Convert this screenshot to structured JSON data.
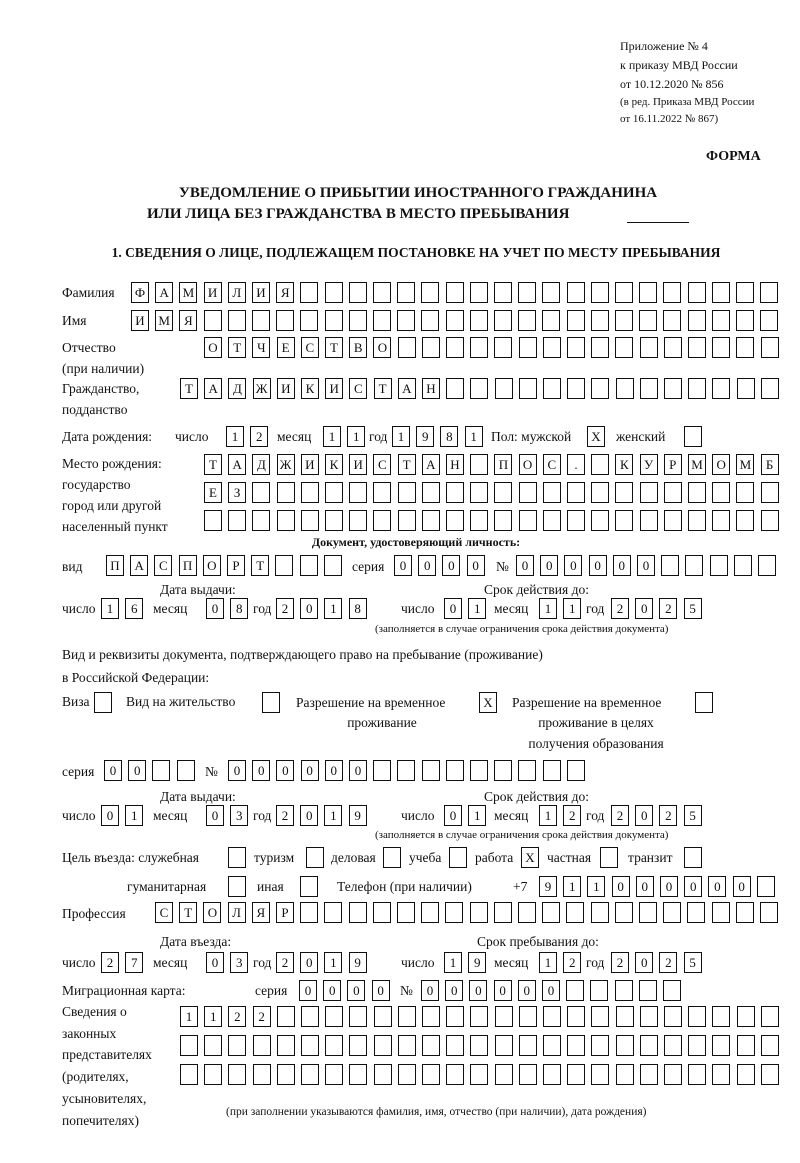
{
  "header": {
    "appendix": "Приложение № 4",
    "order": "к приказу МВД России",
    "order_date": "от 10.12.2020 № 856",
    "revision1": "(в ред. Приказа МВД России",
    "revision2": "от 16.11.2022 № 867)",
    "form": "ФОРМА",
    "title1": "УВЕДОМЛЕНИЕ О ПРИБЫТИИ ИНОСТРАННОГО ГРАЖДАНИНА",
    "title2": "ИЛИ ЛИЦА БЕЗ ГРАЖДАНСТВА В МЕСТО ПРЕБЫВАНИЯ",
    "section1": "1. СВЕДЕНИЯ О ЛИЦЕ, ПОДЛЕЖАЩЕМ ПОСТАНОВКЕ НА УЧЕТ ПО МЕСТУ ПРЕБЫВАНИЯ"
  },
  "labels": {
    "surname": "Фамилия",
    "name": "Имя",
    "patronymic1": "Отчество",
    "patronymic2": "(при наличии)",
    "citizenship1": "Гражданство,",
    "citizenship2": "подданство",
    "birth_date": "Дата рождения:",
    "day": "число",
    "month": "месяц",
    "year": "год",
    "sex_male": "Пол: мужской",
    "sex_female": "женский",
    "birthplace1": "Место рождения:",
    "birthplace2": "государство",
    "birthplace3": "город или другой",
    "birthplace4": "населенный пункт",
    "id_doc": "Документ, удостоверяющий личность:",
    "kind": "вид",
    "series": "серия",
    "number": "№",
    "issue_date": "Дата выдачи:",
    "valid_until": "Срок действия до:",
    "valid_note": "(заполняется в случае ограничения срока действия документа)",
    "right_doc1": "Вид и реквизиты документа, подтверждающего право на пребывание (проживание)",
    "right_doc2": "в Российской Федерации:",
    "visa": "Виза",
    "residence": "Вид на жительство",
    "trp1": "Разрешение на временное",
    "trp2": "проживание",
    "trp_edu1": "Разрешение на временное",
    "trp_edu2": "проживание в целях",
    "trp_edu3": "получения образования",
    "purpose": "Цель въезда: служебная",
    "tourism": "туризм",
    "business": "деловая",
    "study": "учеба",
    "work": "работа",
    "private": "частная",
    "transit": "транзит",
    "humanitarian": "гуманитарная",
    "other": "иная",
    "phone": "Телефон (при наличии)",
    "phone_prefix": "+7",
    "profession": "Профессия",
    "entry_date": "Дата въезда:",
    "stay_until": "Срок пребывания до:",
    "migration_card": "Миграционная карта:",
    "reps1": "Сведения о",
    "reps2": "законных",
    "reps3": "представителях",
    "reps4": "(родителях,",
    "reps5": "усыновителях,",
    "reps6": "попечителях)",
    "reps_note": "(при заполнении указываются фамилия, имя, отчество (при наличии), дата рождения)"
  },
  "values": {
    "surname": [
      "Ф",
      "А",
      "М",
      "И",
      "Л",
      "И",
      "Я"
    ],
    "name": [
      "И",
      "М",
      "Я"
    ],
    "patronymic": [
      "О",
      "Т",
      "Ч",
      "Е",
      "С",
      "Т",
      "В",
      "О"
    ],
    "citizenship": [
      "Т",
      "А",
      "Д",
      "Ж",
      "И",
      "К",
      "И",
      "С",
      "Т",
      "А",
      "Н"
    ],
    "birth_day": [
      "1",
      "2"
    ],
    "birth_month": [
      "1",
      "1"
    ],
    "birth_year": [
      "1",
      "9",
      "8",
      "1"
    ],
    "sex_male": "X",
    "sex_female": "",
    "birthplace_row1": [
      "Т",
      "А",
      "Д",
      "Ж",
      "И",
      "К",
      "И",
      "С",
      "Т",
      "А",
      "Н",
      "",
      "П",
      "О",
      "С",
      ".",
      "",
      "К",
      "У",
      "Р",
      "М",
      "О",
      "М",
      "Б"
    ],
    "birthplace_row2": [
      "Е",
      "З"
    ],
    "birthplace_row3": [],
    "id_kind": [
      "П",
      "А",
      "С",
      "П",
      "О",
      "Р",
      "Т"
    ],
    "id_series": [
      "0",
      "0",
      "0",
      "0"
    ],
    "id_number": [
      "0",
      "0",
      "0",
      "0",
      "0",
      "0"
    ],
    "id_issue_day": [
      "1",
      "6"
    ],
    "id_issue_month": [
      "0",
      "8"
    ],
    "id_issue_year": [
      "2",
      "0",
      "1",
      "8"
    ],
    "id_valid_day": [
      "0",
      "1"
    ],
    "id_valid_month": [
      "1",
      "1"
    ],
    "id_valid_year": [
      "2",
      "0",
      "2",
      "5"
    ],
    "visa": "",
    "residence": "",
    "trp": "X",
    "trp_edu": "",
    "right_series": [
      "0",
      "0"
    ],
    "right_number": [
      "0",
      "0",
      "0",
      "0",
      "0",
      "0"
    ],
    "right_issue_day": [
      "0",
      "1"
    ],
    "right_issue_month": [
      "0",
      "3"
    ],
    "right_issue_year": [
      "2",
      "0",
      "1",
      "9"
    ],
    "right_valid_day": [
      "0",
      "1"
    ],
    "right_valid_month": [
      "1",
      "2"
    ],
    "right_valid_year": [
      "2",
      "0",
      "2",
      "5"
    ],
    "purpose_official": "",
    "purpose_tourism": "",
    "purpose_business": "",
    "purpose_study": "",
    "purpose_work": "X",
    "purpose_private": "",
    "purpose_transit": "",
    "purpose_humanitarian": "",
    "purpose_other": "",
    "phone": [
      "9",
      "1",
      "1",
      "0",
      "0",
      "0",
      "0",
      "0",
      "0"
    ],
    "profession": [
      "С",
      "Т",
      "О",
      "Л",
      "Я",
      "Р"
    ],
    "entry_day": [
      "2",
      "7"
    ],
    "entry_month": [
      "0",
      "3"
    ],
    "entry_year": [
      "2",
      "0",
      "1",
      "9"
    ],
    "stay_day": [
      "1",
      "9"
    ],
    "stay_month": [
      "1",
      "2"
    ],
    "stay_year": [
      "2",
      "0",
      "2",
      "5"
    ],
    "mc_series": [
      "0",
      "0",
      "0",
      "0"
    ],
    "mc_number": [
      "0",
      "0",
      "0",
      "0",
      "0",
      "0"
    ],
    "reps_row1": [
      "1",
      "1",
      "2",
      "2"
    ],
    "reps_row2": [],
    "reps_row3": []
  }
}
